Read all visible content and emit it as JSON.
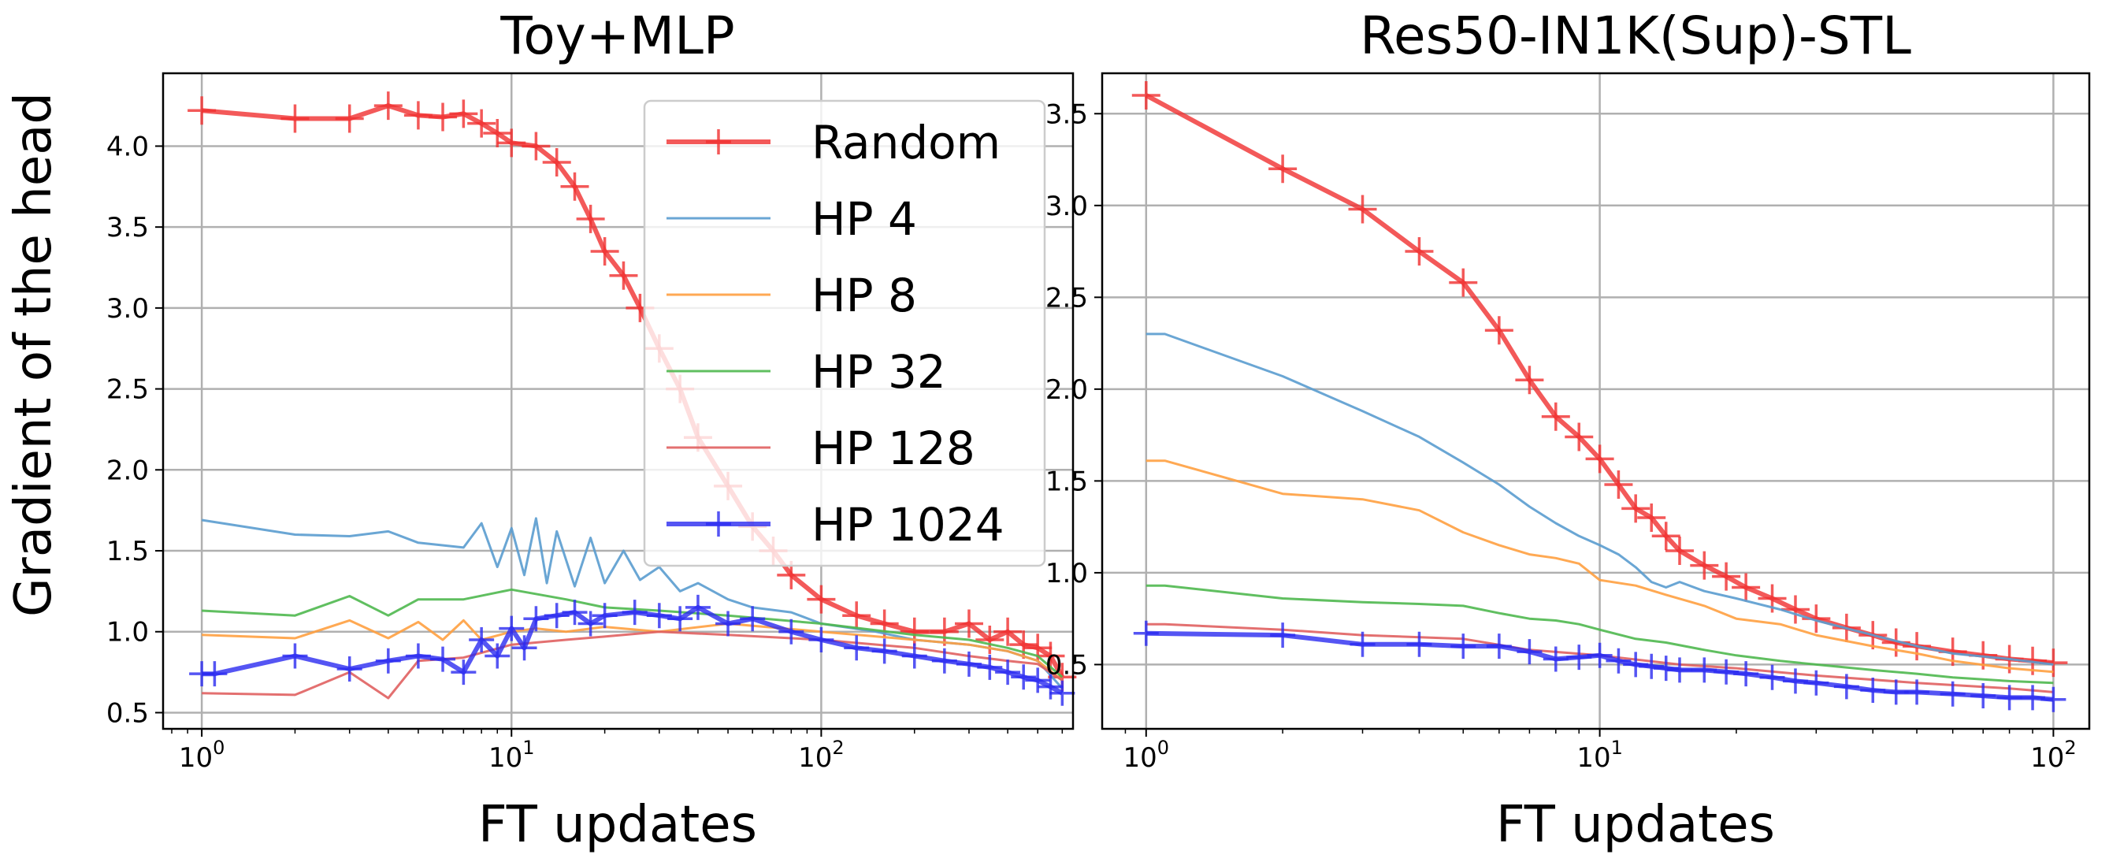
{
  "figure": {
    "ylabel": "Gradient of the head"
  },
  "chart_data": [
    {
      "type": "line",
      "title": "Toy+MLP",
      "xlabel": "FT updates",
      "ylabel": "Gradient of the head",
      "xscale": "log",
      "xlim": [
        0.75,
        650
      ],
      "ylim": [
        0.4,
        4.45
      ],
      "yticks": [
        "0.5",
        "1.0",
        "1.5",
        "2.0",
        "2.5",
        "3.0",
        "3.5",
        "4.0"
      ],
      "xticks": [
        {
          "base": "10",
          "exp": "0",
          "value": 1
        },
        {
          "base": "10",
          "exp": "1",
          "value": 10
        },
        {
          "base": "10",
          "exp": "2",
          "value": 100
        }
      ],
      "grid": true,
      "legend": {
        "position": "top-right",
        "entries": [
          "Random",
          "HP 4",
          "HP 8",
          "HP 32",
          "HP 128",
          "HP 1024"
        ]
      },
      "series": [
        {
          "name": "Random",
          "color": "#f03030",
          "marker": "plus",
          "x": [
            1,
            2,
            3,
            4,
            5,
            6,
            7,
            8,
            9,
            10,
            12,
            14,
            16,
            18,
            20,
            23,
            26,
            30,
            35,
            40,
            50,
            60,
            70,
            80,
            100,
            130,
            160,
            200,
            250,
            300,
            350,
            400,
            450,
            500,
            550,
            600
          ],
          "y": [
            4.22,
            4.17,
            4.17,
            4.25,
            4.19,
            4.18,
            4.2,
            4.14,
            4.08,
            4.02,
            4.0,
            3.9,
            3.75,
            3.55,
            3.35,
            3.2,
            3.0,
            2.75,
            2.5,
            2.2,
            1.9,
            1.65,
            1.5,
            1.35,
            1.2,
            1.1,
            1.05,
            1.0,
            1.0,
            1.05,
            0.95,
            1.0,
            0.92,
            0.9,
            0.85,
            0.72
          ]
        },
        {
          "name": "HP 4",
          "color": "#5a9ccf",
          "marker": "none",
          "x": [
            1,
            2,
            3,
            4,
            5,
            7,
            8,
            9,
            10,
            11,
            12,
            13,
            14,
            16,
            18,
            20,
            23,
            26,
            30,
            35,
            40,
            50,
            60,
            80,
            100,
            150,
            200,
            300,
            400,
            500,
            600
          ],
          "y": [
            1.69,
            1.6,
            1.59,
            1.62,
            1.55,
            1.52,
            1.67,
            1.4,
            1.64,
            1.35,
            1.7,
            1.3,
            1.62,
            1.28,
            1.58,
            1.3,
            1.5,
            1.32,
            1.4,
            1.25,
            1.3,
            1.2,
            1.15,
            1.12,
            1.05,
            1.0,
            0.95,
            0.92,
            0.88,
            0.82,
            0.65
          ]
        },
        {
          "name": "HP 8",
          "color": "#ffa040",
          "marker": "none",
          "x": [
            1,
            2,
            3,
            4,
            5,
            6,
            7,
            8,
            10,
            12,
            15,
            20,
            30,
            50,
            100,
            200,
            300,
            400,
            500,
            600
          ],
          "y": [
            0.98,
            0.96,
            1.07,
            0.96,
            1.06,
            0.95,
            1.07,
            0.95,
            1.0,
            1.02,
            1.0,
            1.03,
            1.0,
            1.05,
            1.0,
            0.95,
            0.92,
            0.88,
            0.82,
            0.7
          ]
        },
        {
          "name": "HP 32",
          "color": "#4fb84f",
          "marker": "none",
          "x": [
            1,
            2,
            3,
            4,
            5,
            7,
            10,
            15,
            20,
            30,
            50,
            100,
            200,
            300,
            400,
            500,
            600
          ],
          "y": [
            1.13,
            1.1,
            1.22,
            1.1,
            1.2,
            1.2,
            1.26,
            1.2,
            1.15,
            1.13,
            1.1,
            1.05,
            0.98,
            0.95,
            0.9,
            0.85,
            0.72
          ]
        },
        {
          "name": "HP 128",
          "color": "#e06060",
          "marker": "none",
          "x": [
            1,
            2,
            3,
            4,
            5,
            7,
            10,
            15,
            20,
            30,
            50,
            100,
            200,
            300,
            400,
            500,
            600
          ],
          "y": [
            0.62,
            0.61,
            0.75,
            0.59,
            0.82,
            0.84,
            0.92,
            0.95,
            0.97,
            1.0,
            0.98,
            0.95,
            0.9,
            0.85,
            0.82,
            0.8,
            0.7
          ]
        },
        {
          "name": "HP 1024",
          "color": "#2b2bf0",
          "marker": "plus",
          "x": [
            1,
            1.1,
            2,
            3,
            4,
            5,
            6,
            7,
            8,
            9,
            10,
            11,
            12,
            14,
            16,
            18,
            20,
            25,
            30,
            35,
            40,
            50,
            60,
            80,
            100,
            130,
            160,
            200,
            250,
            300,
            350,
            400,
            450,
            500,
            550,
            600
          ],
          "y": [
            0.74,
            0.74,
            0.85,
            0.77,
            0.82,
            0.85,
            0.83,
            0.75,
            0.95,
            0.85,
            1.02,
            0.9,
            1.08,
            1.1,
            1.12,
            1.05,
            1.1,
            1.12,
            1.1,
            1.08,
            1.15,
            1.05,
            1.08,
            1.0,
            0.95,
            0.9,
            0.88,
            0.85,
            0.82,
            0.8,
            0.78,
            0.75,
            0.72,
            0.7,
            0.66,
            0.62
          ]
        }
      ]
    },
    {
      "type": "line",
      "title": "Res50-IN1K(Sup)-STL",
      "xlabel": "FT updates",
      "ylabel": "",
      "xscale": "log",
      "xlim": [
        0.8,
        120
      ],
      "ylim": [
        0.15,
        3.72
      ],
      "yticks": [
        "0.5",
        "1.0",
        "1.5",
        "2.0",
        "2.5",
        "3.0",
        "3.5"
      ],
      "xticks": [
        {
          "base": "10",
          "exp": "0",
          "value": 1
        },
        {
          "base": "10",
          "exp": "1",
          "value": 10
        },
        {
          "base": "10",
          "exp": "2",
          "value": 100
        }
      ],
      "grid": true,
      "legend": null,
      "series": [
        {
          "name": "Random",
          "color": "#f03030",
          "marker": "plus",
          "x": [
            1,
            2,
            3,
            4,
            5,
            6,
            7,
            8,
            9,
            10,
            11,
            12,
            13,
            14,
            15,
            17,
            19,
            21,
            24,
            27,
            30,
            35,
            40,
            45,
            50,
            60,
            70,
            80,
            90,
            100
          ],
          "y": [
            3.6,
            3.2,
            2.98,
            2.75,
            2.58,
            2.32,
            2.05,
            1.85,
            1.74,
            1.62,
            1.48,
            1.35,
            1.3,
            1.2,
            1.12,
            1.04,
            0.98,
            0.92,
            0.86,
            0.8,
            0.75,
            0.7,
            0.66,
            0.62,
            0.6,
            0.57,
            0.55,
            0.53,
            0.52,
            0.51
          ]
        },
        {
          "name": "HP 4",
          "color": "#5a9ccf",
          "marker": "none",
          "x": [
            1,
            1.1,
            2,
            3,
            4,
            5,
            6,
            7,
            8,
            9,
            10,
            11,
            12,
            13,
            14,
            15,
            17,
            20,
            25,
            30,
            40,
            50,
            60,
            80,
            100
          ],
          "y": [
            2.3,
            2.3,
            2.07,
            1.88,
            1.74,
            1.6,
            1.48,
            1.36,
            1.27,
            1.2,
            1.15,
            1.1,
            1.03,
            0.95,
            0.92,
            0.95,
            0.9,
            0.86,
            0.8,
            0.74,
            0.66,
            0.6,
            0.56,
            0.53,
            0.5
          ]
        },
        {
          "name": "HP 8",
          "color": "#ffa040",
          "marker": "none",
          "x": [
            1,
            1.1,
            2,
            3,
            4,
            5,
            6,
            7,
            8,
            9,
            10,
            12,
            14,
            17,
            20,
            25,
            30,
            40,
            50,
            60,
            80,
            100
          ],
          "y": [
            1.61,
            1.61,
            1.43,
            1.4,
            1.34,
            1.22,
            1.15,
            1.1,
            1.08,
            1.05,
            0.96,
            0.93,
            0.88,
            0.82,
            0.75,
            0.72,
            0.66,
            0.6,
            0.56,
            0.52,
            0.48,
            0.46
          ]
        },
        {
          "name": "HP 32",
          "color": "#4fb84f",
          "marker": "none",
          "x": [
            1,
            1.1,
            2,
            3,
            4,
            5,
            6,
            7,
            8,
            9,
            10,
            12,
            14,
            17,
            20,
            25,
            30,
            40,
            50,
            60,
            80,
            100
          ],
          "y": [
            0.93,
            0.93,
            0.86,
            0.84,
            0.83,
            0.82,
            0.78,
            0.75,
            0.74,
            0.72,
            0.69,
            0.64,
            0.62,
            0.58,
            0.55,
            0.52,
            0.5,
            0.47,
            0.45,
            0.43,
            0.41,
            0.4
          ]
        },
        {
          "name": "HP 128",
          "color": "#e06060",
          "marker": "none",
          "x": [
            1,
            1.1,
            2,
            3,
            5,
            7,
            10,
            15,
            20,
            30,
            50,
            80,
            100
          ],
          "y": [
            0.72,
            0.72,
            0.69,
            0.66,
            0.64,
            0.58,
            0.55,
            0.5,
            0.48,
            0.44,
            0.4,
            0.37,
            0.35
          ]
        },
        {
          "name": "HP 1024",
          "color": "#2b2bf0",
          "marker": "plus",
          "x": [
            1,
            2,
            3,
            4,
            5,
            6,
            7,
            8,
            9,
            10,
            11,
            12,
            13,
            14,
            15,
            17,
            19,
            21,
            24,
            27,
            30,
            35,
            40,
            45,
            50,
            60,
            70,
            80,
            90,
            100
          ],
          "y": [
            0.67,
            0.66,
            0.61,
            0.61,
            0.6,
            0.6,
            0.57,
            0.53,
            0.54,
            0.55,
            0.52,
            0.5,
            0.49,
            0.48,
            0.47,
            0.47,
            0.46,
            0.45,
            0.43,
            0.41,
            0.4,
            0.38,
            0.36,
            0.35,
            0.35,
            0.34,
            0.33,
            0.32,
            0.32,
            0.31
          ]
        }
      ]
    }
  ]
}
